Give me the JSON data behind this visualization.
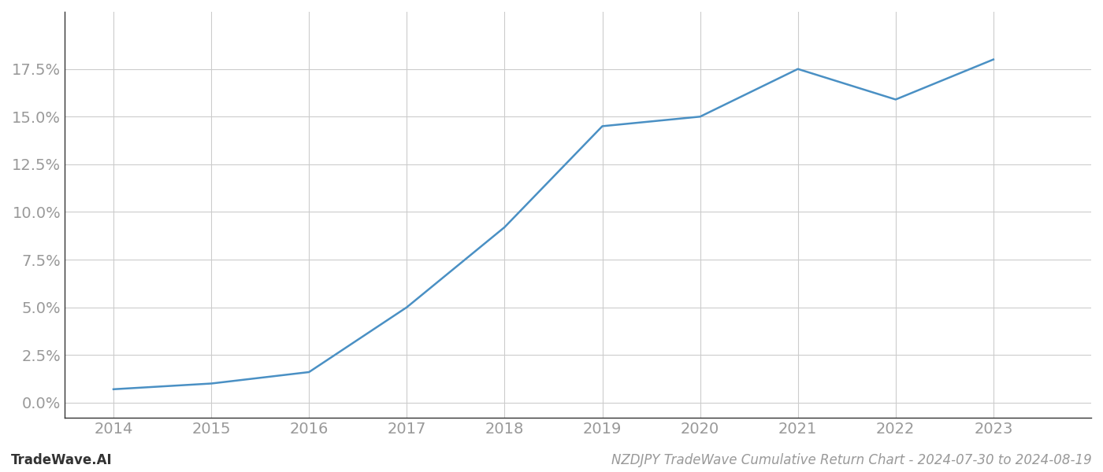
{
  "x_years": [
    2014,
    2015,
    2016,
    2017,
    2018,
    2019,
    2020,
    2021,
    2022,
    2023
  ],
  "y_values": [
    0.007,
    0.01,
    0.016,
    0.05,
    0.092,
    0.145,
    0.15,
    0.175,
    0.159,
    0.18
  ],
  "line_color": "#4a90c4",
  "line_width": 1.8,
  "background_color": "#ffffff",
  "grid_color": "#cccccc",
  "tick_color": "#999999",
  "label_color": "#999999",
  "footer_left": "TradeWave.AI",
  "footer_right": "NZDJPY TradeWave Cumulative Return Chart - 2024-07-30 to 2024-08-19",
  "xlim": [
    2013.5,
    2024.0
  ],
  "ylim": [
    -0.008,
    0.205
  ],
  "yticks": [
    0.0,
    0.025,
    0.05,
    0.075,
    0.1,
    0.125,
    0.15,
    0.175
  ],
  "xticks": [
    2014,
    2015,
    2016,
    2017,
    2018,
    2019,
    2020,
    2021,
    2022,
    2023
  ],
  "figsize": [
    14.0,
    6.0
  ],
  "dpi": 100,
  "tick_fontsize": 14,
  "footer_fontsize": 12
}
